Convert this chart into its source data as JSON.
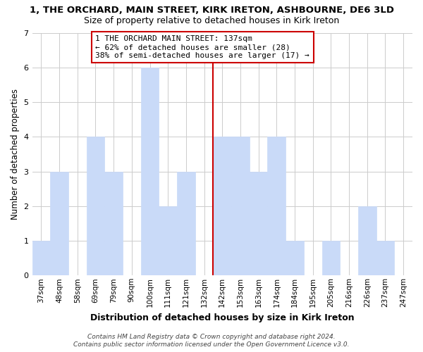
{
  "title": "1, THE ORCHARD, MAIN STREET, KIRK IRETON, ASHBOURNE, DE6 3LD",
  "subtitle": "Size of property relative to detached houses in Kirk Ireton",
  "xlabel": "Distribution of detached houses by size in Kirk Ireton",
  "ylabel": "Number of detached properties",
  "bar_labels": [
    "37sqm",
    "48sqm",
    "58sqm",
    "69sqm",
    "79sqm",
    "90sqm",
    "100sqm",
    "111sqm",
    "121sqm",
    "132sqm",
    "142sqm",
    "153sqm",
    "163sqm",
    "174sqm",
    "184sqm",
    "195sqm",
    "205sqm",
    "216sqm",
    "226sqm",
    "237sqm",
    "247sqm"
  ],
  "bar_values": [
    1,
    3,
    0,
    4,
    3,
    0,
    6,
    2,
    3,
    0,
    4,
    4,
    3,
    4,
    1,
    0,
    1,
    0,
    2,
    1,
    0
  ],
  "bar_color": "#c9daf8",
  "bar_edge_color": "#c9daf8",
  "highlight_index": 10,
  "highlight_line_color": "#cc0000",
  "ylim": [
    0,
    7
  ],
  "yticks": [
    0,
    1,
    2,
    3,
    4,
    5,
    6,
    7
  ],
  "annotation_title": "1 THE ORCHARD MAIN STREET: 137sqm",
  "annotation_line1": "← 62% of detached houses are smaller (28)",
  "annotation_line2": "38% of semi-detached houses are larger (17) →",
  "annotation_box_color": "#ffffff",
  "annotation_border_color": "#cc0000",
  "footer_line1": "Contains HM Land Registry data © Crown copyright and database right 2024.",
  "footer_line2": "Contains public sector information licensed under the Open Government Licence v3.0.",
  "background_color": "#ffffff",
  "grid_color": "#cccccc"
}
